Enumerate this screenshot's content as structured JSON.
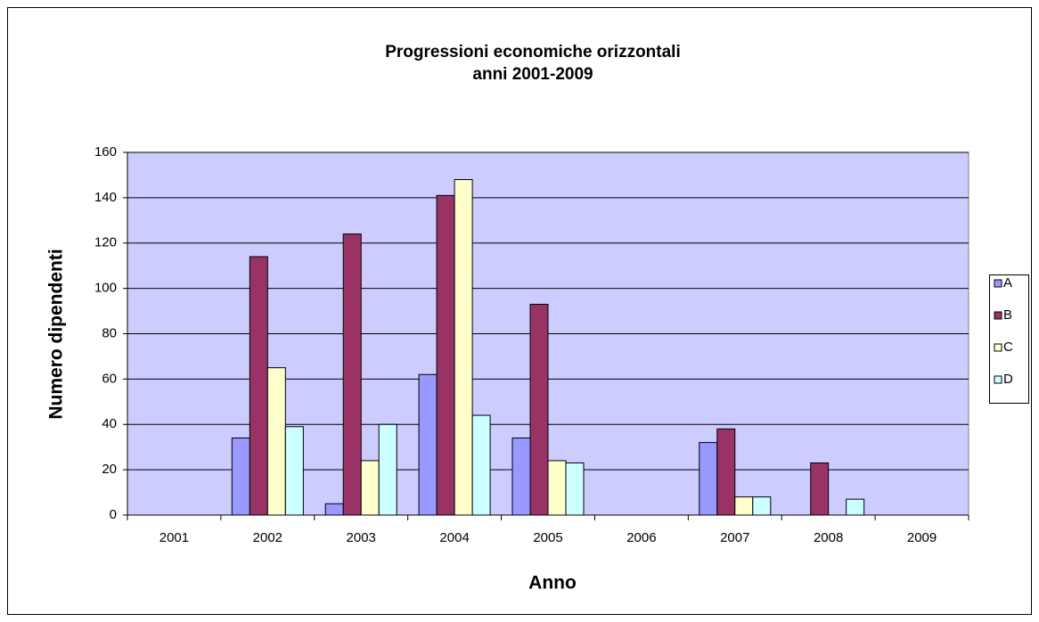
{
  "chart_data": {
    "type": "bar",
    "title": [
      "Progressioni economiche orizzontali",
      "anni 2001-2009"
    ],
    "x_label": "Anno",
    "y_label": "Numero dipendenti",
    "categories": [
      "2001",
      "2002",
      "2003",
      "2004",
      "2005",
      "2006",
      "2007",
      "2008",
      "2009"
    ],
    "series": [
      {
        "name": "A",
        "color": "#9999ff",
        "values": [
          0,
          34,
          5,
          62,
          34,
          0,
          32,
          0,
          0
        ]
      },
      {
        "name": "B",
        "color": "#993366",
        "values": [
          0,
          114,
          124,
          141,
          93,
          0,
          38,
          23,
          0
        ]
      },
      {
        "name": "C",
        "color": "#ffffcc",
        "values": [
          0,
          65,
          24,
          148,
          24,
          0,
          8,
          0,
          0
        ]
      },
      {
        "name": "D",
        "color": "#ccffff",
        "values": [
          0,
          39,
          40,
          44,
          23,
          0,
          8,
          7,
          0
        ]
      }
    ],
    "ylim": [
      0,
      160
    ],
    "yticks": [
      0,
      20,
      40,
      60,
      80,
      100,
      120,
      140,
      160
    ],
    "grid": true,
    "legend": "right",
    "plot_background": "#ccccff"
  }
}
